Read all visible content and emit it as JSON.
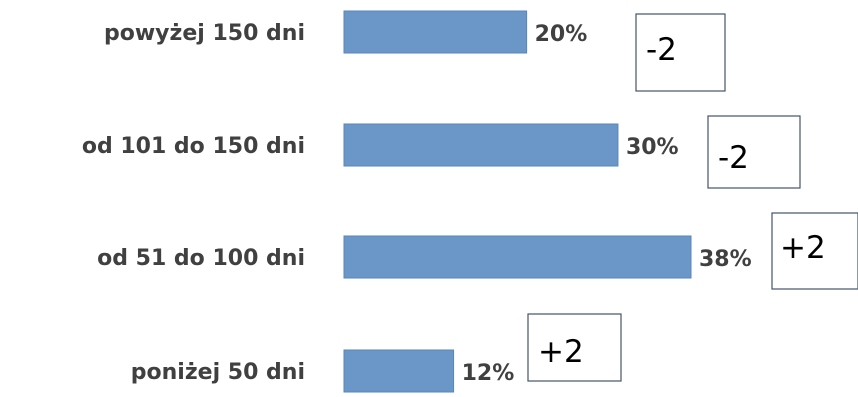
{
  "chart_data": {
    "type": "bar",
    "orientation": "horizontal",
    "categories": [
      "powyżej 150 dni",
      "od 101 do 150 dni",
      "od 51 do 100 dni",
      "poniżej 50  dni"
    ],
    "values": [
      20,
      30,
      38,
      12
    ],
    "value_labels": [
      "20%",
      "30%",
      "38%",
      "12%"
    ],
    "annotations": [
      "-2",
      "-2",
      "+2",
      "+2"
    ],
    "title": "",
    "xlabel": "",
    "ylabel": "",
    "xlim": [
      0,
      38
    ],
    "grid": false,
    "legend": "none",
    "bar_color": "#6b96c8"
  }
}
